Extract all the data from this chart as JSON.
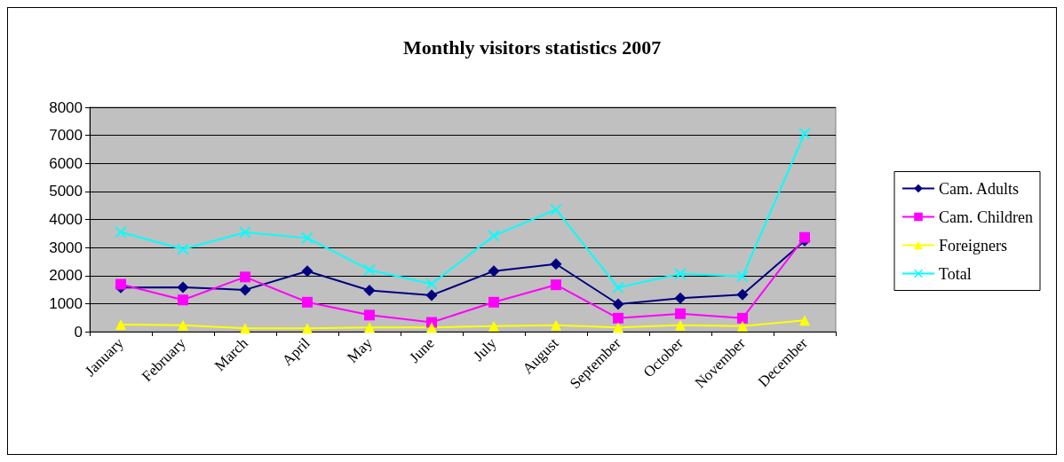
{
  "chart_data": {
    "type": "line",
    "title": "Monthly visitors statistics 2007",
    "categories": [
      "January",
      "February",
      "March",
      "April",
      "May",
      "June",
      "July",
      "August",
      "September",
      "October",
      "November",
      "December"
    ],
    "series": [
      {
        "name": "Cam. Adults",
        "color": "#000080",
        "marker": "diamond",
        "values": [
          1570,
          1580,
          1490,
          2160,
          1470,
          1300,
          2160,
          2410,
          980,
          1190,
          1320,
          3240
        ]
      },
      {
        "name": "Cam. Children",
        "color": "#ff00ff",
        "marker": "square",
        "values": [
          1690,
          1130,
          1950,
          1050,
          590,
          330,
          1050,
          1670,
          480,
          640,
          480,
          3360
        ]
      },
      {
        "name": "Foreigners",
        "color": "#ffff00",
        "marker": "triangle",
        "values": [
          250,
          230,
          120,
          120,
          150,
          150,
          200,
          230,
          150,
          230,
          200,
          400
        ]
      },
      {
        "name": "Total",
        "color": "#00ffff",
        "marker": "cross",
        "values": [
          3550,
          2940,
          3540,
          3340,
          2200,
          1700,
          3420,
          4350,
          1570,
          2060,
          1970,
          7070
        ]
      }
    ],
    "ylim": [
      0,
      8000
    ],
    "yticks": [
      0,
      1000,
      2000,
      3000,
      4000,
      5000,
      6000,
      7000,
      8000
    ],
    "grid": "y",
    "legend": "right"
  }
}
